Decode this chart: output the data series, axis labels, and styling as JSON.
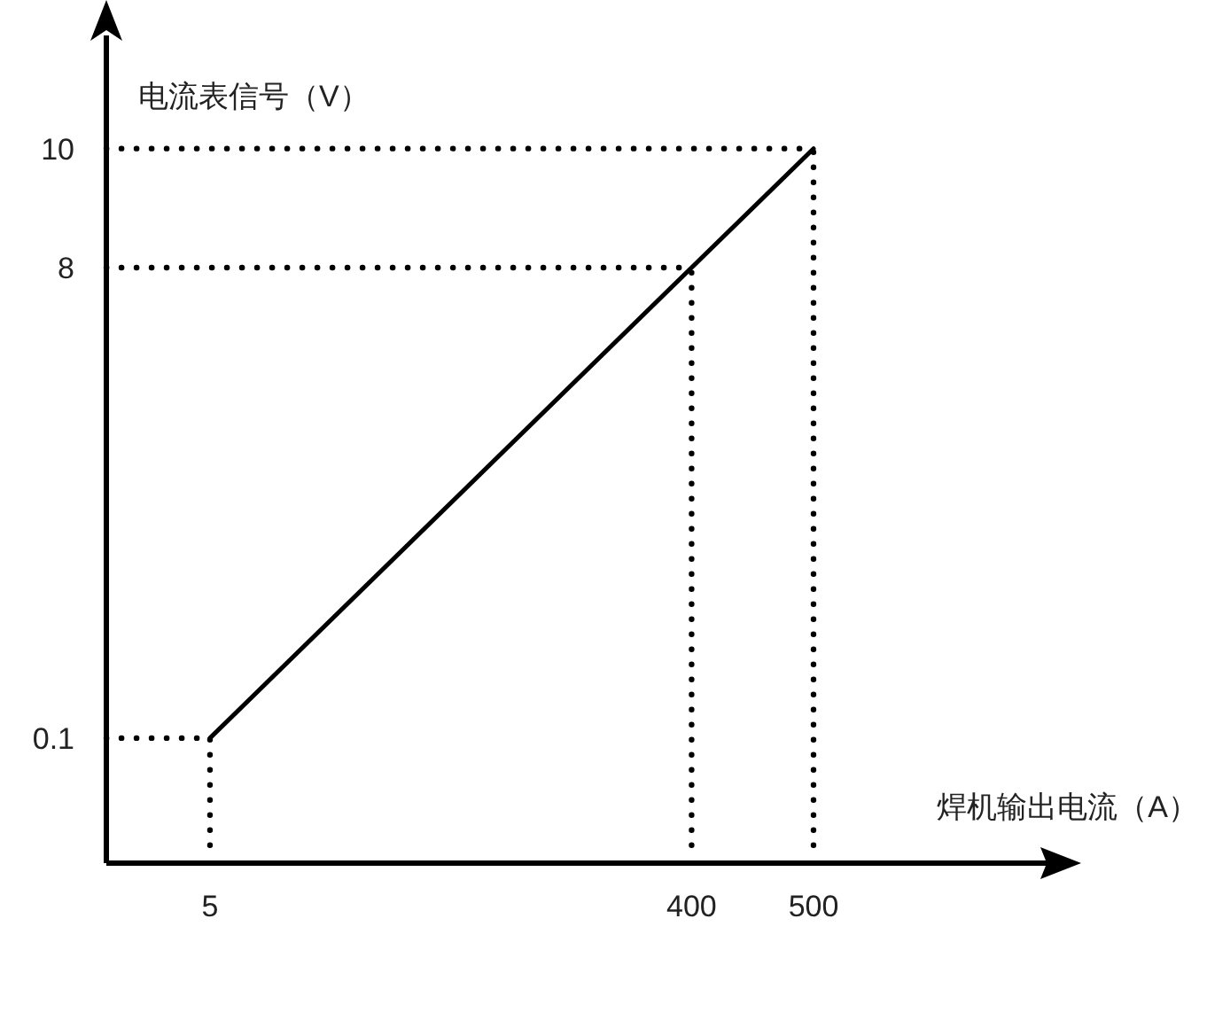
{
  "chart_data": {
    "type": "line",
    "xlabel": "焊机输出电流（A）",
    "ylabel": "电流表信号（V）",
    "x": [
      5,
      400,
      500
    ],
    "series": [
      {
        "color": "#000000",
        "values": [
          0.1,
          8,
          10
        ],
        "line_style": "solid"
      },
      {
        "color": "#000000",
        "x": [
          -80,
          500
        ],
        "values": [
          10,
          10
        ],
        "line_style": "dotted"
      },
      {
        "color": "#000000",
        "x": [
          -80,
          400
        ],
        "values": [
          8,
          8
        ],
        "line_style": "dotted"
      },
      {
        "color": "#000000",
        "x": [
          -80,
          5
        ],
        "values": [
          0.1,
          0.1
        ],
        "line_style": "dotted"
      },
      {
        "color": "#000000",
        "x": [
          5,
          5
        ],
        "values": [
          -1.7,
          0.1
        ],
        "line_style": "dotted"
      },
      {
        "color": "#000000",
        "x": [
          400,
          400
        ],
        "values": [
          -1.7,
          8
        ],
        "line_style": "dotted"
      },
      {
        "color": "#000000",
        "x": [
          500,
          500
        ],
        "values": [
          -1.7,
          10
        ],
        "line_style": "dotted"
      }
    ],
    "xlim": [
      -80,
      500
    ],
    "ylim": [
      -2,
      11.9
    ],
    "xticks": [
      5,
      400,
      500
    ],
    "yticks": [
      0.1,
      8,
      10
    ],
    "grid": false,
    "marker": "none"
  }
}
